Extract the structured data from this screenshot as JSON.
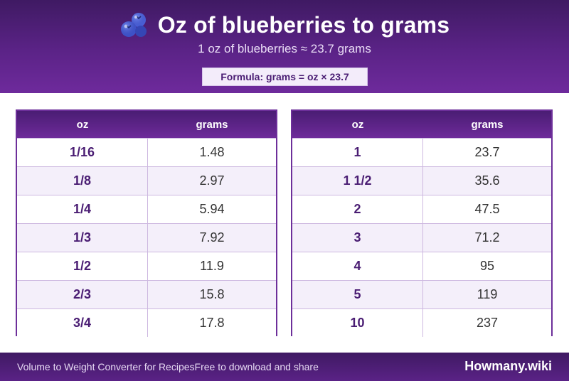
{
  "header": {
    "title": "Oz of blueberries to grams",
    "icon": "blueberry-icon",
    "subtitle": "1 oz of blueberries ≈ 23.7 grams",
    "formula": "Formula: grams = oz × 23.7"
  },
  "tables": [
    {
      "columns": [
        "oz",
        "grams"
      ],
      "rows": [
        [
          "1/16",
          "1.48"
        ],
        [
          "1/8",
          "2.97"
        ],
        [
          "1/4",
          "5.94"
        ],
        [
          "1/3",
          "7.92"
        ],
        [
          "1/2",
          "11.9"
        ],
        [
          "2/3",
          "15.8"
        ],
        [
          "3/4",
          "17.8"
        ]
      ]
    },
    {
      "columns": [
        "oz",
        "grams"
      ],
      "rows": [
        [
          "1",
          "23.7"
        ],
        [
          "1 1/2",
          "35.6"
        ],
        [
          "2",
          "47.5"
        ],
        [
          "3",
          "71.2"
        ],
        [
          "4",
          "95"
        ],
        [
          "5",
          "119"
        ],
        [
          "10",
          "237"
        ]
      ]
    }
  ],
  "footer": {
    "left_text": "Volume to Weight Converter for RecipesFree to download and share",
    "brand": "Howmany.wiki"
  },
  "colors": {
    "primary": "#5b2387",
    "accent": "#6d2f9a",
    "row_alt": "#f4effa"
  }
}
